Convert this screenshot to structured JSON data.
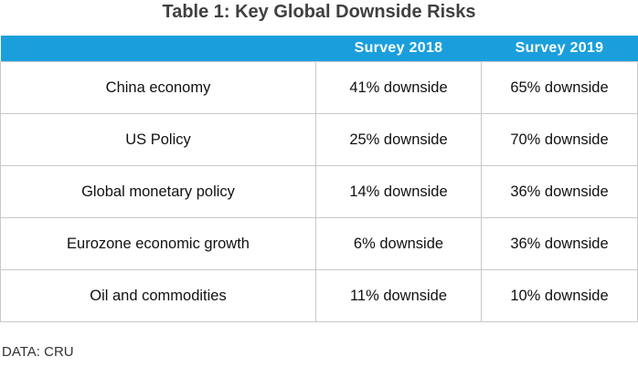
{
  "title": "Table 1: Key Global Downside Risks",
  "columns": [
    "",
    "Survey 2018",
    "Survey 2019"
  ],
  "rows": [
    {
      "risk": "China economy",
      "y2018": "41% downside",
      "y2019": "65% downside"
    },
    {
      "risk": "US Policy",
      "y2018": "25% downside",
      "y2019": "70% downside"
    },
    {
      "risk": "Global monetary policy",
      "y2018": "14% downside",
      "y2019": "36% downside"
    },
    {
      "risk": "Eurozone economic growth",
      "y2018": "6% downside",
      "y2019": "36% downside"
    },
    {
      "risk": "Oil and commodities",
      "y2018": "11% downside",
      "y2019": "10% downside"
    }
  ],
  "source": "DATA: CRU",
  "colors": {
    "header_bg": "#1a9fdc",
    "header_text": "#ffffff",
    "grid": "#c9c9c9",
    "title": "#404040"
  }
}
